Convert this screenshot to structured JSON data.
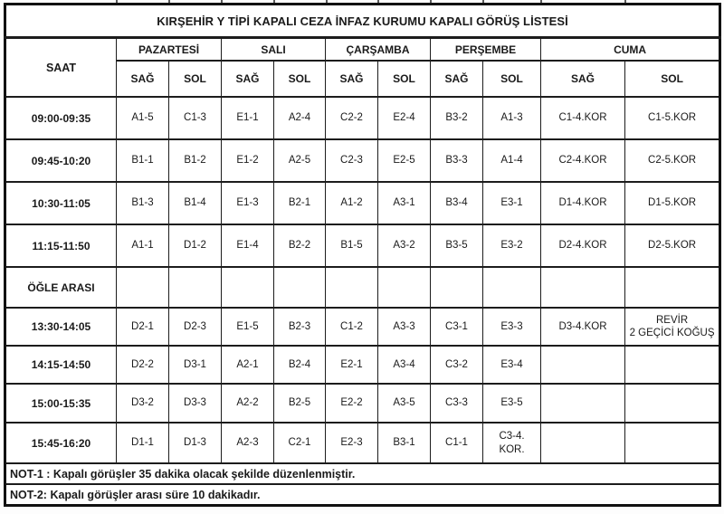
{
  "title": "KIRŞEHİR Y TİPİ KAPALI CEZA İNFAZ KURUMU KAPALI GÖRÜŞ LİSTESİ",
  "header": {
    "saat": "SAAT",
    "sag": "SAĞ",
    "sol": "SOL",
    "days": [
      "PAZARTESİ",
      "SALI",
      "ÇARŞAMBA",
      "PERŞEMBE",
      "CUMA"
    ]
  },
  "rows": [
    {
      "time": "09:00-09:35",
      "cells": [
        "A1-5",
        "C1-3",
        "E1-1",
        "A2-4",
        "C2-2",
        "E2-4",
        "B3-2",
        "A1-3",
        "C1-4.KOR",
        "C1-5.KOR"
      ]
    },
    {
      "time": "09:45-10:20",
      "cells": [
        "B1-1",
        "B1-2",
        "E1-2",
        "A2-5",
        "C2-3",
        "E2-5",
        "B3-3",
        "A1-4",
        "C2-4.KOR",
        "C2-5.KOR"
      ]
    },
    {
      "time": "10:30-11:05",
      "cells": [
        "B1-3",
        "B1-4",
        "E1-3",
        "B2-1",
        "A1-2",
        "A3-1",
        "B3-4",
        "E3-1",
        "D1-4.KOR",
        "D1-5.KOR"
      ]
    },
    {
      "time": "11:15-11:50",
      "cells": [
        "A1-1",
        "D1-2",
        "E1-4",
        "B2-2",
        "B1-5",
        "A3-2",
        "B3-5",
        "E3-2",
        "D2-4.KOR",
        "D2-5.KOR"
      ]
    },
    {
      "time": "ÖĞLE ARASI",
      "cells": [
        "",
        "",
        "",
        "",
        "",
        "",
        "",
        "",
        "",
        ""
      ]
    },
    {
      "time": "13:30-14:05",
      "cells": [
        "D2-1",
        "D2-3",
        "E1-5",
        "B2-3",
        "C1-2",
        "A3-3",
        "C3-1",
        "E3-3",
        "D3-4.KOR",
        "REVİR\n2 GEÇİCİ KOĞUŞ"
      ]
    },
    {
      "time": "14:15-14:50",
      "cells": [
        "D2-2",
        "D3-1",
        "A2-1",
        "B2-4",
        "E2-1",
        "A3-4",
        "C3-2",
        "E3-4",
        "",
        ""
      ]
    },
    {
      "time": "15:00-15:35",
      "cells": [
        "D3-2",
        "D3-3",
        "A2-2",
        "B2-5",
        "E2-2",
        "A3-5",
        "C3-3",
        "E3-5",
        "",
        ""
      ]
    },
    {
      "time": "15:45-16:20",
      "cells": [
        "D1-1",
        "D1-3",
        "A2-3",
        "C2-1",
        "E2-3",
        "B3-1",
        "C1-1",
        "C3-4. KOR.",
        "",
        ""
      ]
    }
  ],
  "notes": [
    "NOT-1 : Kapalı görüşler 35 dakika olacak şekilde düzenlenmiştir.",
    "NOT-2: Kapalı görüşler arası süre 10 dakikadır."
  ]
}
